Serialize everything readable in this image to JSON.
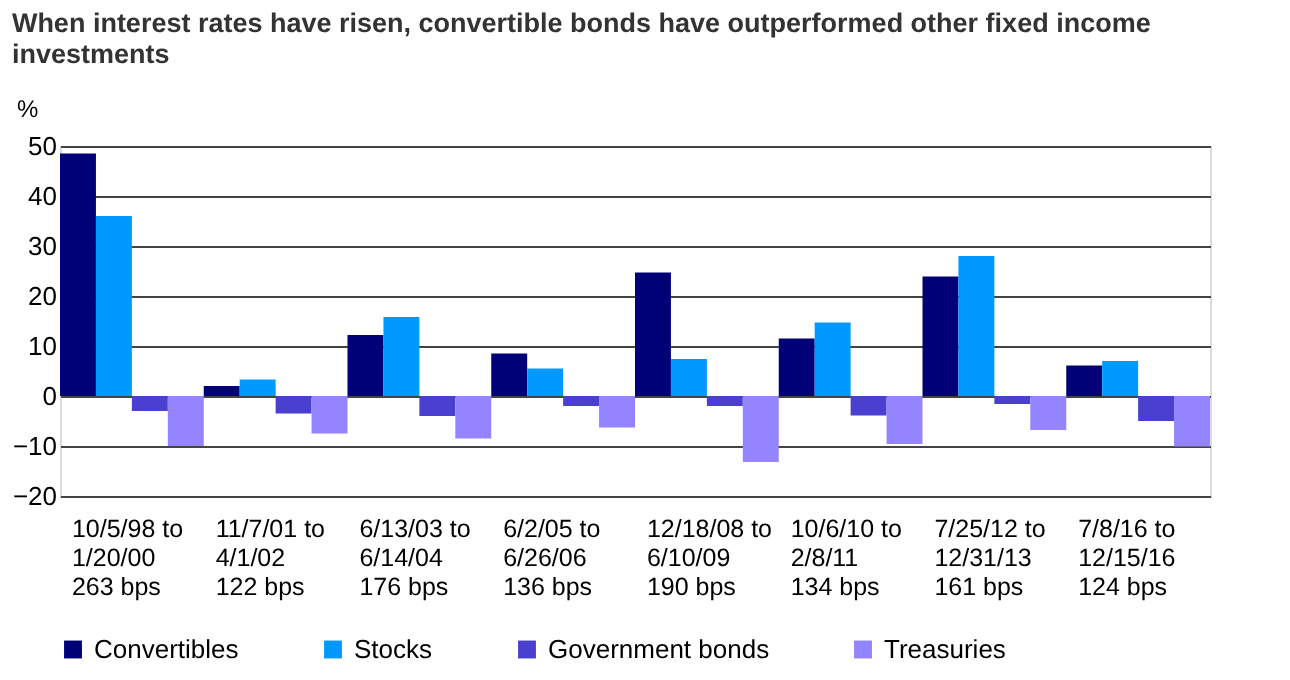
{
  "chart_data": {
    "type": "bar",
    "title": "When interest rates have risen, convertible bonds have outperformed other fixed income investments",
    "ylabel": "%",
    "categories": [
      "10/5/98 to\n1/20/00\n263 bps",
      "11/7/01 to\n4/1/02\n122 bps",
      "6/13/03 to\n6/14/04\n176 bps",
      "6/2/05 to\n6/26/06\n136 bps",
      "12/18/08 to\n6/10/09\n190 bps",
      "10/6/10 to\n2/8/11\n134 bps",
      "7/25/12 to\n12/31/13\n161 bps",
      "7/8/16 to\n12/15/16\n124 bps"
    ],
    "series": [
      {
        "name": "Convertibles",
        "color": "#000077",
        "values": [
          48.5,
          2,
          12.2,
          8.5,
          24.7,
          11.5,
          23.9,
          6.1
        ]
      },
      {
        "name": "Stocks",
        "color": "#0099ff",
        "values": [
          36,
          3.3,
          15.8,
          5.5,
          7.4,
          14.7,
          28,
          7
        ]
      },
      {
        "name": "Government bonds",
        "color": "#4a3fcf",
        "values": [
          -3,
          -3.5,
          -4,
          -2,
          -2,
          -3.9,
          -1.6,
          -5
        ]
      },
      {
        "name": "Treasuries",
        "color": "#9484ff",
        "values": [
          -10,
          -7.5,
          -8.5,
          -6.3,
          -13.2,
          -9.6,
          -6.8,
          -10.1
        ]
      }
    ],
    "ylim": [
      -20,
      50
    ],
    "yticks": [
      -20,
      -10,
      0,
      10,
      20,
      30,
      40,
      50
    ],
    "grid": "y",
    "legend": "bottom left"
  }
}
